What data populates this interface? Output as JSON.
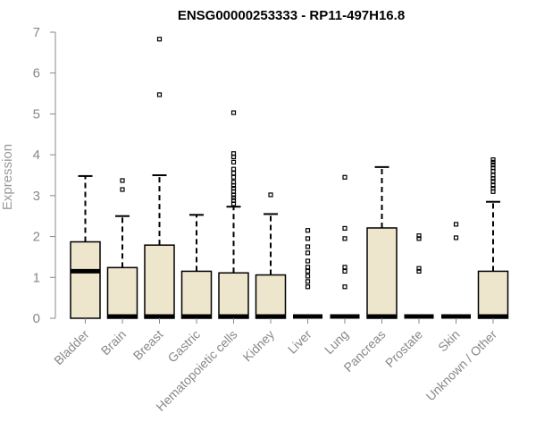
{
  "chart_data": {
    "type": "boxplot",
    "title": "ENSG00000253333 - RP11-497H16.8",
    "xlabel": "",
    "ylabel": "Expression",
    "ylim": [
      0,
      7
    ],
    "yticks": [
      0,
      1,
      2,
      3,
      4,
      5,
      6,
      7
    ],
    "grid": false,
    "box_fill": "#ede6cc",
    "categories": [
      "Bladder",
      "Brain",
      "Breast",
      "Gastric",
      "Hematopoietic cells",
      "Kidney",
      "Liver",
      "Lung",
      "Pancreas",
      "Prostate",
      "Skin",
      "Unknown / Other"
    ],
    "boxes": [
      {
        "whisker_low": 0,
        "q1": 0,
        "median": 1.15,
        "q3": 1.87,
        "whisker_high": 3.48,
        "outliers": []
      },
      {
        "whisker_low": 0,
        "q1": 0,
        "median": 0,
        "q3": 1.24,
        "whisker_high": 2.5,
        "outliers": [
          3.15,
          3.37
        ]
      },
      {
        "whisker_low": 0,
        "q1": 0,
        "median": 0,
        "q3": 1.79,
        "whisker_high": 3.5,
        "outliers": [
          5.47,
          6.83
        ]
      },
      {
        "whisker_low": 0,
        "q1": 0,
        "median": 0,
        "q3": 1.15,
        "whisker_high": 2.53,
        "outliers": []
      },
      {
        "whisker_low": 0,
        "q1": 0,
        "median": 0,
        "q3": 1.11,
        "whisker_high": 2.73,
        "outliers": [
          2.8,
          2.88,
          2.95,
          3.02,
          3.1,
          3.18,
          3.25,
          3.33,
          3.45,
          3.55,
          3.65,
          3.82,
          3.95,
          4.03,
          5.03
        ]
      },
      {
        "whisker_low": 0,
        "q1": 0,
        "median": 0,
        "q3": 1.06,
        "whisker_high": 2.55,
        "outliers": [
          3.02
        ]
      },
      {
        "whisker_low": 0,
        "q1": 0,
        "median": 0,
        "q3": 0,
        "whisker_high": 0,
        "outliers": [
          0.77,
          0.9,
          1.03,
          1.15,
          1.25,
          1.4,
          1.6,
          1.75,
          1.95,
          2.15
        ]
      },
      {
        "whisker_low": 0,
        "q1": 0,
        "median": 0,
        "q3": 0,
        "whisker_high": 0,
        "outliers": [
          0.77,
          1.15,
          1.25,
          1.95,
          2.2,
          3.45
        ]
      },
      {
        "whisker_low": 0,
        "q1": 0,
        "median": 0,
        "q3": 2.21,
        "whisker_high": 3.7,
        "outliers": []
      },
      {
        "whisker_low": 0,
        "q1": 0,
        "median": 0,
        "q3": 0,
        "whisker_high": 0,
        "outliers": [
          1.15,
          1.22,
          1.95,
          2.02
        ]
      },
      {
        "whisker_low": 0,
        "q1": 0,
        "median": 0,
        "q3": 0,
        "whisker_high": 0,
        "outliers": [
          1.97,
          2.3
        ]
      },
      {
        "whisker_low": 0,
        "q1": 0,
        "median": 0,
        "q3": 1.15,
        "whisker_high": 2.85,
        "outliers": [
          3.1,
          3.18,
          3.25,
          3.35,
          3.42,
          3.5,
          3.6,
          3.68,
          3.75,
          3.82,
          3.88
        ]
      }
    ]
  }
}
